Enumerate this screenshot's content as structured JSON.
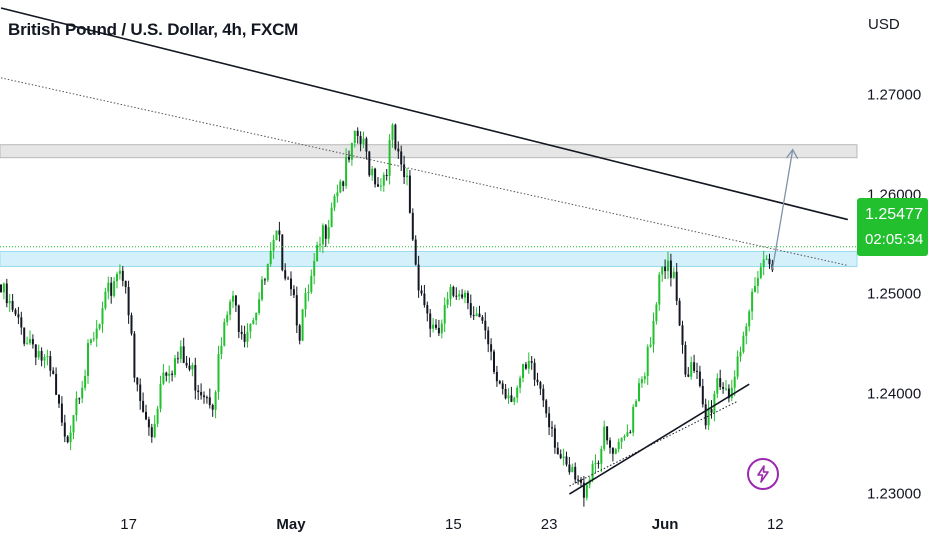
{
  "chart_data": {
    "type": "candlestick",
    "title": "British Pound / U.S. Dollar, 4h, FXCM",
    "currency": "USD",
    "ylim": [
      1.2289,
      1.2795
    ],
    "y_ticks": [
      "1.27000",
      "1.26000",
      "1.25000",
      "1.24000",
      "1.23000"
    ],
    "x_ticks": [
      {
        "label": "17",
        "bold": false
      },
      {
        "label": "May",
        "bold": true
      },
      {
        "label": "15",
        "bold": false
      },
      {
        "label": "23",
        "bold": false
      },
      {
        "label": "Jun",
        "bold": true
      },
      {
        "label": "12",
        "bold": false
      }
    ],
    "last_price": "1.25477",
    "countdown": "02:05:34",
    "up_color": "#22c02f",
    "down_color": "#131722",
    "zone_color": "#d4f0fa",
    "resistance_zone_color": "#e6e6e6",
    "anchors": [
      [
        0,
        1.251
      ],
      [
        6,
        1.2475
      ],
      [
        12,
        1.2458
      ],
      [
        18,
        1.2418
      ],
      [
        22,
        1.2355
      ],
      [
        26,
        1.2412
      ],
      [
        34,
        1.2475
      ],
      [
        40,
        1.2535
      ],
      [
        43,
        1.2528
      ],
      [
        46,
        1.242
      ],
      [
        50,
        1.2378
      ],
      [
        52,
        1.2368
      ],
      [
        56,
        1.2438
      ],
      [
        62,
        1.2443
      ],
      [
        68,
        1.242
      ],
      [
        73,
        1.2408
      ],
      [
        79,
        1.25
      ],
      [
        84,
        1.2475
      ],
      [
        90,
        1.251
      ],
      [
        95,
        1.256
      ],
      [
        100,
        1.2525
      ],
      [
        103,
        1.2475
      ],
      [
        106,
        1.2505
      ],
      [
        110,
        1.2555
      ],
      [
        115,
        1.2615
      ],
      [
        119,
        1.263
      ],
      [
        123,
        1.2665
      ],
      [
        127,
        1.264
      ],
      [
        131,
        1.262
      ],
      [
        135,
        1.2665
      ],
      [
        138,
        1.2625
      ],
      [
        140,
        1.262
      ],
      [
        143,
        1.254
      ],
      [
        146,
        1.25
      ],
      [
        150,
        1.246
      ],
      [
        154,
        1.2495
      ],
      [
        158,
        1.252
      ],
      [
        162,
        1.2502
      ],
      [
        166,
        1.247
      ],
      [
        170,
        1.243
      ],
      [
        174,
        1.2412
      ],
      [
        178,
        1.2415
      ],
      [
        182,
        1.243
      ],
      [
        186,
        1.2415
      ],
      [
        190,
        1.238
      ],
      [
        194,
        1.233
      ],
      [
        198,
        1.232
      ],
      [
        200,
        1.231
      ],
      [
        204,
        1.234
      ],
      [
        208,
        1.236
      ],
      [
        212,
        1.234
      ],
      [
        216,
        1.237
      ],
      [
        220,
        1.2425
      ],
      [
        224,
        1.245
      ],
      [
        227,
        1.252
      ],
      [
        229,
        1.2525
      ],
      [
        232,
        1.2535
      ],
      [
        236,
        1.244
      ],
      [
        240,
        1.242
      ],
      [
        243,
        1.2375
      ],
      [
        247,
        1.2425
      ],
      [
        251,
        1.2415
      ],
      [
        255,
        1.2435
      ],
      [
        258,
        1.2488
      ],
      [
        261,
        1.254
      ],
      [
        264,
        1.2545
      ],
      [
        266,
        1.2548
      ]
    ],
    "annotations": {
      "descending_trendline": [
        [
          0,
          1.2787
        ],
        [
          292,
          1.2575
        ]
      ],
      "dotted_trendline": [
        [
          0,
          1.2717
        ],
        [
          292,
          1.2529
        ]
      ],
      "support_trendline": [
        [
          196,
          1.23
        ],
        [
          258,
          1.241
        ]
      ],
      "dotted_support": [
        [
          196,
          1.2308
        ],
        [
          254,
          1.2393
        ]
      ],
      "resistance_zone": [
        1.2637,
        1.265
      ],
      "support_zone": [
        1.2528,
        1.2543
      ],
      "target_arrow": [
        [
          266,
          1.2525
        ],
        [
          273,
          1.2645
        ]
      ]
    }
  }
}
